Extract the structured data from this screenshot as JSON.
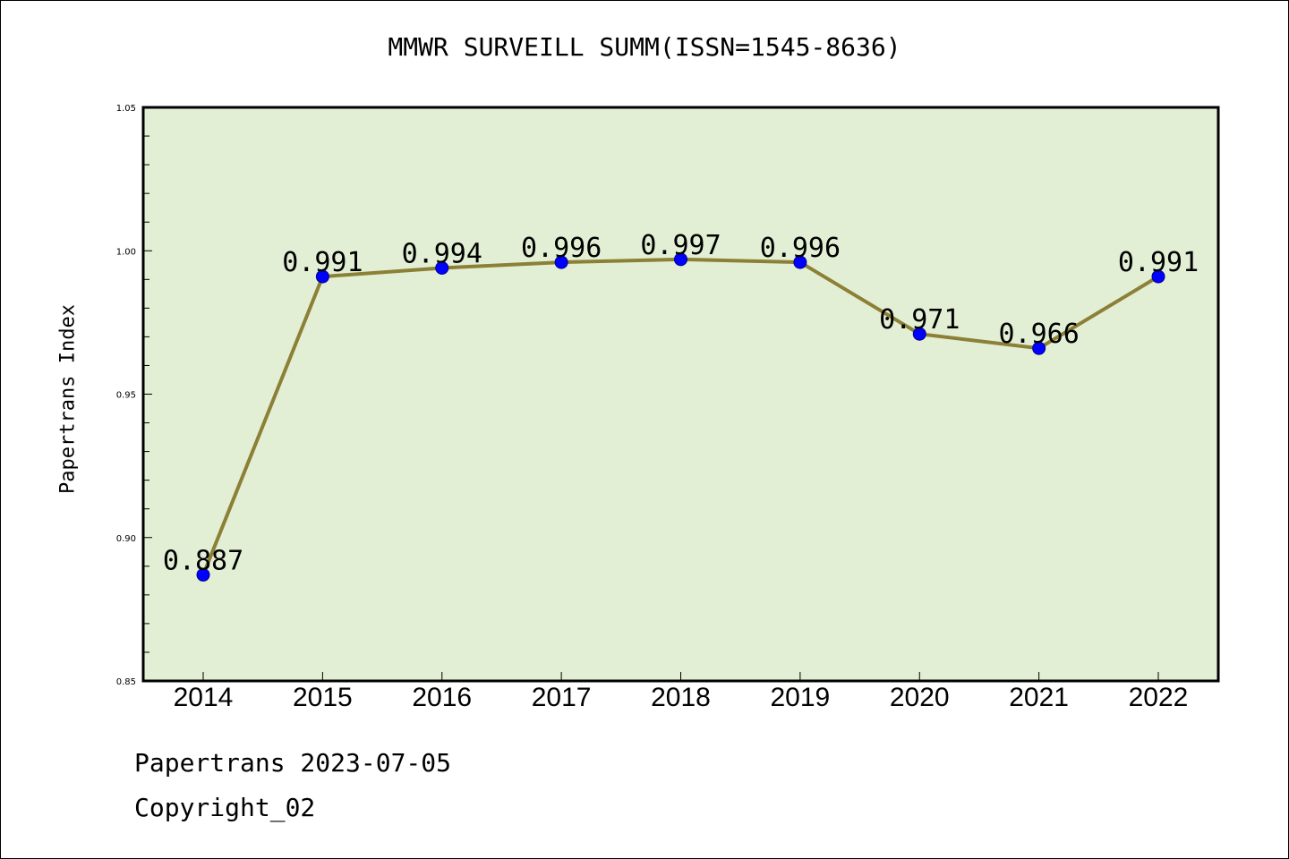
{
  "chart_data": {
    "type": "line",
    "title": "MMWR SURVEILL SUMM(ISSN=1545-8636)",
    "xlabel": "",
    "ylabel": "Papertrans Index",
    "categories": [
      "2014",
      "2015",
      "2016",
      "2017",
      "2018",
      "2019",
      "2020",
      "2021",
      "2022"
    ],
    "series": [
      {
        "values": [
          0.887,
          0.991,
          0.994,
          0.996,
          0.997,
          0.996,
          0.971,
          0.966,
          0.991
        ],
        "data_labels": [
          "0.887",
          "0.991",
          "0.994",
          "0.996",
          "0.997",
          "0.996",
          "0.971",
          "0.966",
          "0.991"
        ]
      }
    ],
    "ylim": [
      0.85,
      1.05
    ],
    "yticks": [
      "0.85",
      "0.90",
      "0.95",
      "1.00",
      "1.05"
    ],
    "grid": false,
    "colors": {
      "plot_background": "#e2efd5",
      "line": "#8b8036",
      "marker": "#0000ff"
    }
  },
  "footer": {
    "source": "Papertrans 2023-07-05",
    "copyright": "Copyright_02"
  }
}
